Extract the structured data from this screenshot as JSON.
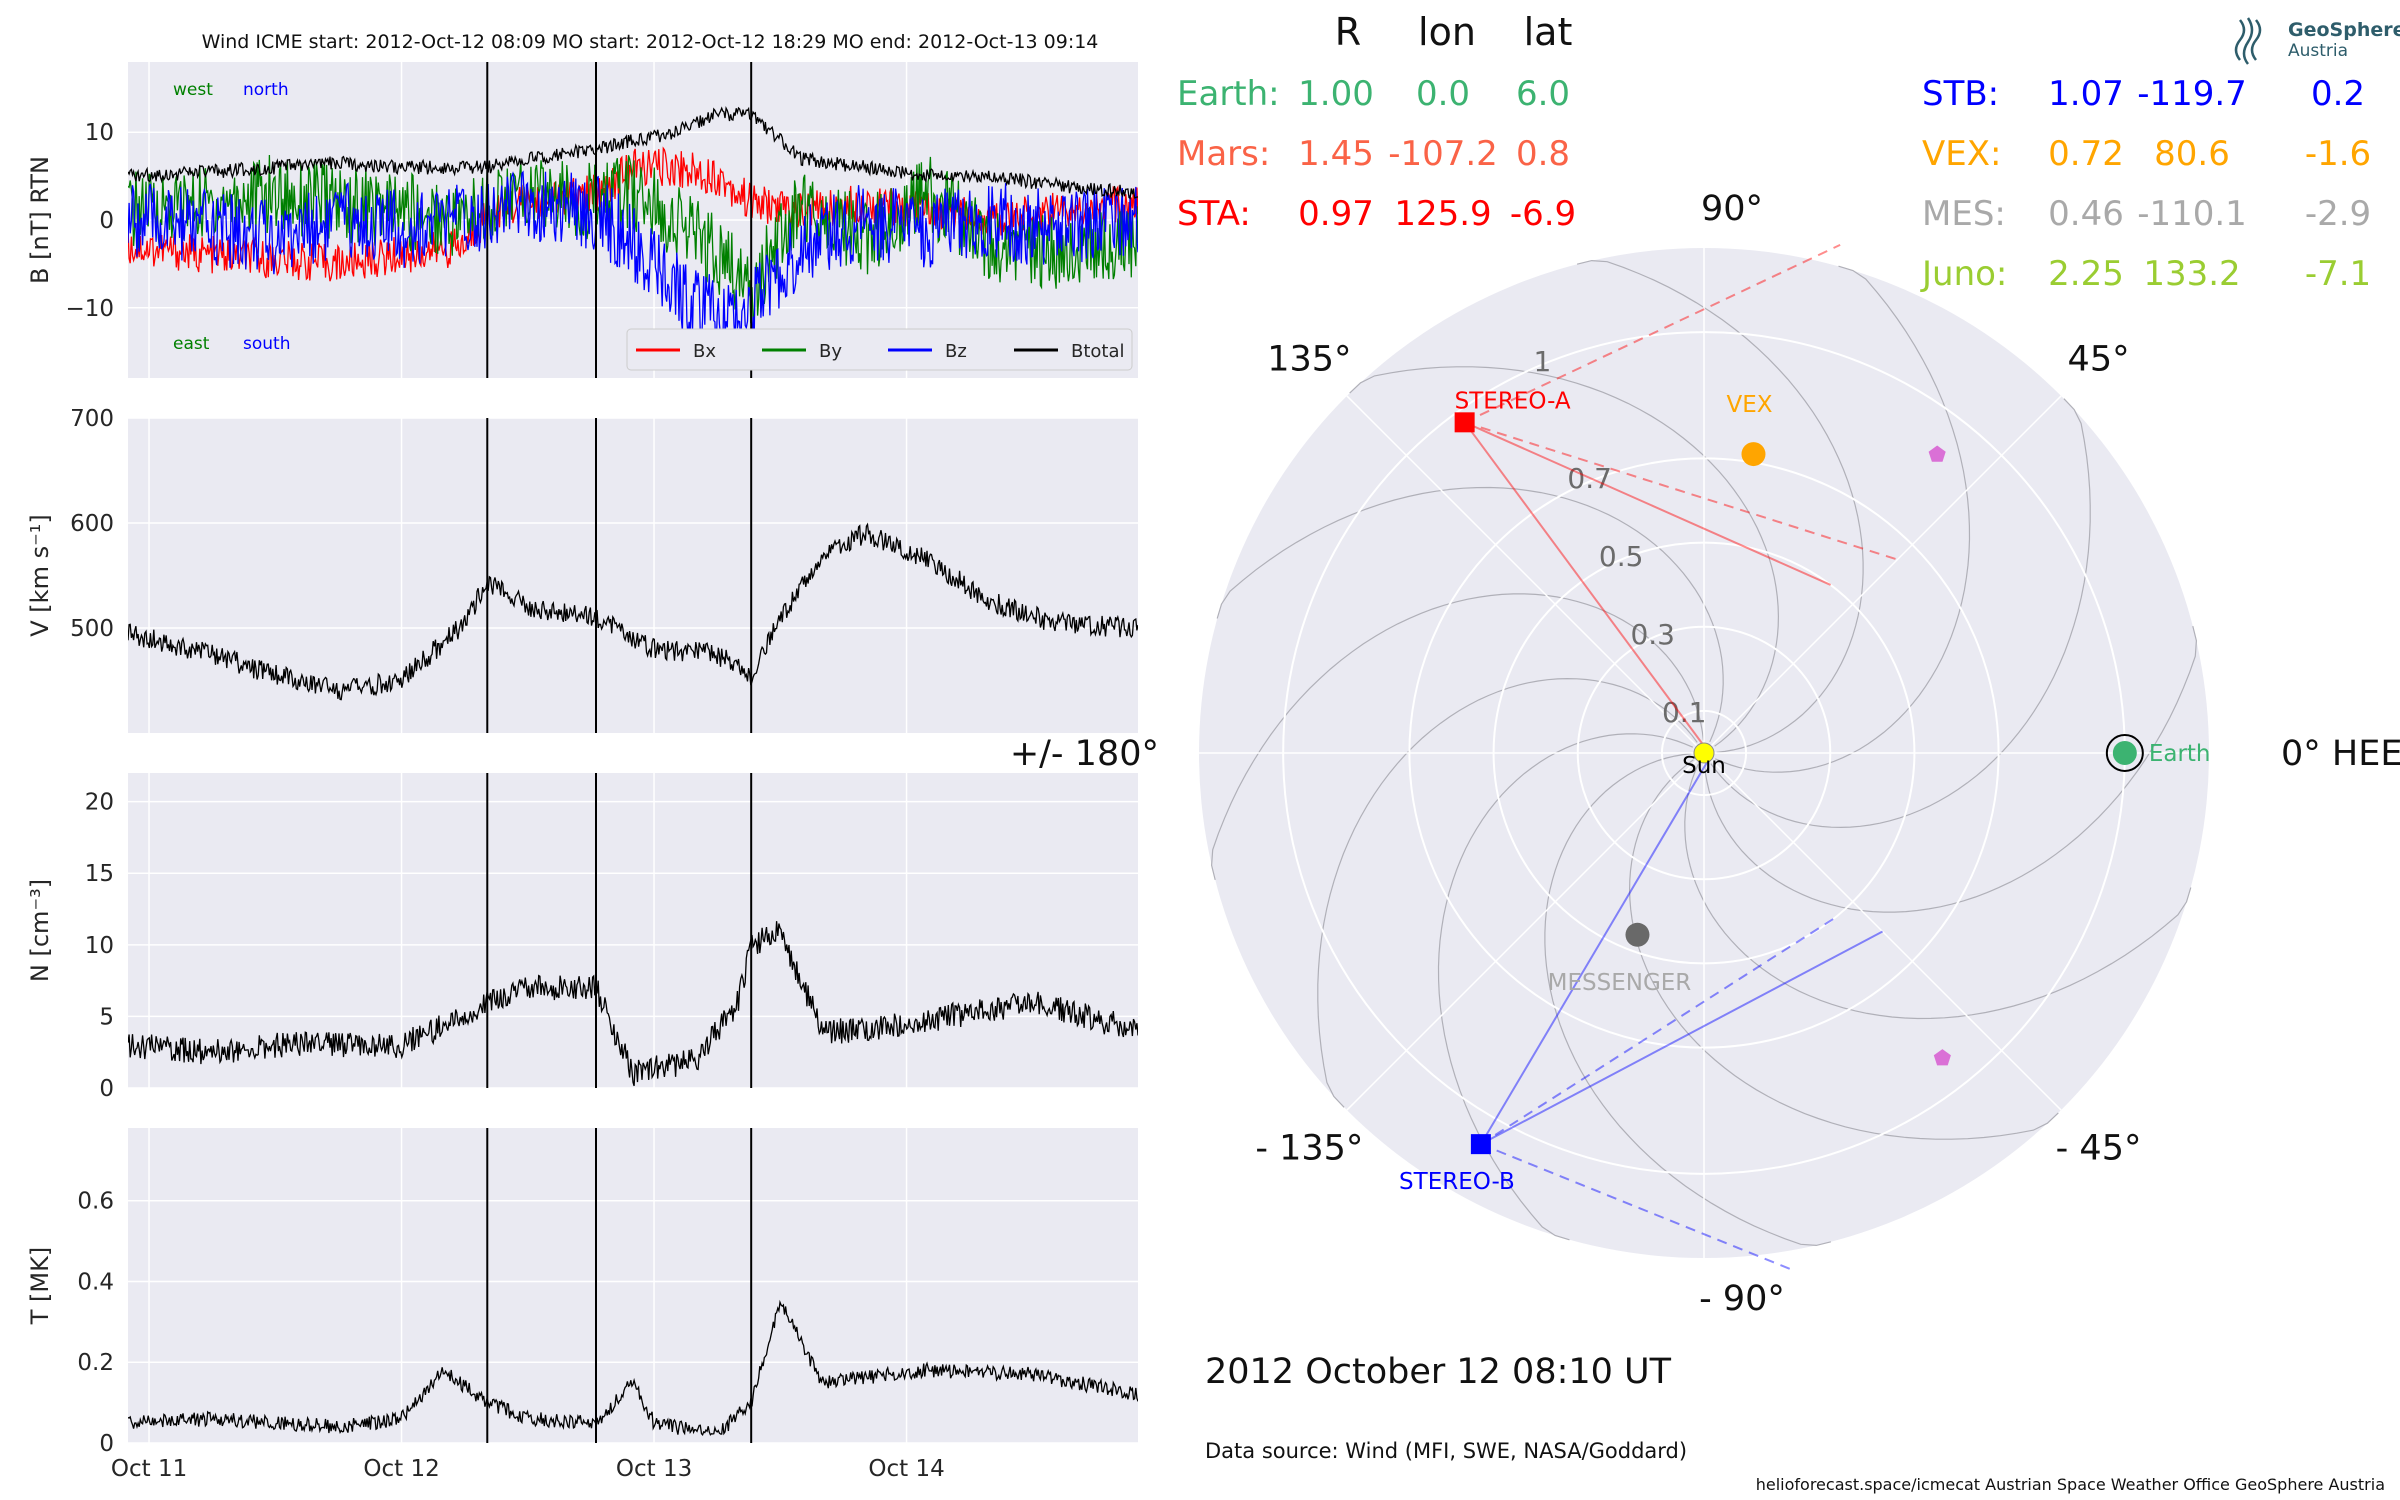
{
  "title": "Wind    ICME start: 2012-Oct-12 08:09    MO start: 2012-Oct-12 18:29    MO end: 2012-Oct-13 09:14",
  "time_axis": {
    "start": "2012-10-10T22:00",
    "end": "2012-10-14T22:00",
    "tick_labels": [
      "Oct 11",
      "Oct 12",
      "Oct 13",
      "Oct 14"
    ],
    "tick_dates": [
      "2012-10-11T00:00",
      "2012-10-12T00:00",
      "2012-10-13T00:00",
      "2012-10-14T00:00"
    ]
  },
  "event_lines": [
    {
      "label": "ICME start",
      "time": "2012-10-12T08:09"
    },
    {
      "label": "MO start",
      "time": "2012-10-12T18:29"
    },
    {
      "label": "MO end",
      "time": "2012-10-13T09:14"
    }
  ],
  "colors": {
    "panel_bg": "#eaeaf2",
    "grid": "#ffffff",
    "bx": "#ff0000",
    "by": "#008000",
    "bz": "#0000ff",
    "btotal": "#000000",
    "earth": "#3cb371",
    "mars": "#fa6347",
    "sta": "#ff0000",
    "stb": "#0000ff",
    "vex": "#ffa500",
    "mes": "#a9a9a9",
    "juno": "#9acd32",
    "sun": "#ffff00"
  },
  "annotations": {
    "west": "west",
    "north": "north",
    "east": "east",
    "south": "south"
  },
  "chart_data": [
    {
      "type": "line",
      "ylabel": "B [nT] RTN",
      "ylim": [
        -18,
        18
      ],
      "yticks": [
        -10,
        0,
        10
      ],
      "grid": true,
      "legend_position": "bottom-right",
      "series": [
        {
          "name": "Bx",
          "color": "#ff0000",
          "x": [
            "2012-10-10T22:00",
            "2012-10-11T06:00",
            "2012-10-11T12:00",
            "2012-10-11T18:00",
            "2012-10-12T00:00",
            "2012-10-12T06:00",
            "2012-10-12T08:09",
            "2012-10-12T12:00",
            "2012-10-12T18:29",
            "2012-10-12T22:00",
            "2012-10-13T02:00",
            "2012-10-13T06:00",
            "2012-10-13T09:14",
            "2012-10-13T14:00",
            "2012-10-13T20:00",
            "2012-10-14T02:00",
            "2012-10-14T08:00",
            "2012-10-14T14:00",
            "2012-10-14T22:00"
          ],
          "y": [
            -3,
            -4,
            -4.5,
            -5,
            -4,
            -3,
            1,
            2,
            3,
            6,
            6,
            5,
            2,
            1,
            2,
            1,
            0,
            1,
            2
          ]
        },
        {
          "name": "By",
          "color": "#008000",
          "x": [
            "2012-10-10T22:00",
            "2012-10-11T06:00",
            "2012-10-11T12:00",
            "2012-10-11T18:00",
            "2012-10-12T00:00",
            "2012-10-12T06:00",
            "2012-10-12T08:09",
            "2012-10-12T12:00",
            "2012-10-12T18:29",
            "2012-10-12T22:00",
            "2012-10-13T02:00",
            "2012-10-13T06:00",
            "2012-10-13T09:14",
            "2012-10-13T14:00",
            "2012-10-13T20:00",
            "2012-10-14T02:00",
            "2012-10-14T08:00",
            "2012-10-14T14:00",
            "2012-10-14T22:00"
          ],
          "y": [
            1,
            2,
            3,
            2,
            1,
            0,
            2,
            3,
            2,
            3,
            0,
            -4,
            -8,
            2,
            -2,
            3,
            -3,
            -4,
            -2
          ]
        },
        {
          "name": "Bz",
          "color": "#0000ff",
          "x": [
            "2012-10-10T22:00",
            "2012-10-11T06:00",
            "2012-10-11T12:00",
            "2012-10-11T18:00",
            "2012-10-12T00:00",
            "2012-10-12T06:00",
            "2012-10-12T08:09",
            "2012-10-12T12:00",
            "2012-10-12T18:29",
            "2012-10-12T22:00",
            "2012-10-13T02:00",
            "2012-10-13T06:00",
            "2012-10-13T09:14",
            "2012-10-13T14:00",
            "2012-10-13T20:00",
            "2012-10-14T02:00",
            "2012-10-14T08:00",
            "2012-10-14T14:00",
            "2012-10-14T22:00"
          ],
          "y": [
            0,
            -1,
            -2,
            0,
            -1,
            0,
            1,
            2,
            1,
            -3,
            -8,
            -11,
            -10,
            -3,
            0,
            -1,
            0,
            -1,
            0
          ]
        },
        {
          "name": "Btotal",
          "color": "#000000",
          "x": [
            "2012-10-10T22:00",
            "2012-10-11T06:00",
            "2012-10-11T12:00",
            "2012-10-11T18:00",
            "2012-10-12T00:00",
            "2012-10-12T06:00",
            "2012-10-12T08:09",
            "2012-10-12T12:00",
            "2012-10-12T18:29",
            "2012-10-12T22:00",
            "2012-10-13T02:00",
            "2012-10-13T06:00",
            "2012-10-13T09:14",
            "2012-10-13T14:00",
            "2012-10-13T20:00",
            "2012-10-14T02:00",
            "2012-10-14T08:00",
            "2012-10-14T14:00",
            "2012-10-14T22:00"
          ],
          "y": [
            5,
            5.5,
            6,
            6.5,
            6,
            6,
            6,
            7,
            8,
            9,
            10,
            12,
            12,
            7,
            6,
            5,
            5,
            4,
            3
          ]
        }
      ]
    },
    {
      "type": "line",
      "ylabel": "V [km s⁻¹]",
      "ylim": [
        400,
        700
      ],
      "yticks": [
        500,
        600,
        700
      ],
      "grid": true,
      "series": [
        {
          "name": "",
          "color": "#000000",
          "x": [
            "2012-10-10T22:00",
            "2012-10-11T06:00",
            "2012-10-11T12:00",
            "2012-10-11T18:00",
            "2012-10-12T00:00",
            "2012-10-12T06:00",
            "2012-10-12T08:09",
            "2012-10-12T12:00",
            "2012-10-12T18:29",
            "2012-10-13T00:00",
            "2012-10-13T06:00",
            "2012-10-13T09:14",
            "2012-10-13T12:00",
            "2012-10-13T16:00",
            "2012-10-13T20:00",
            "2012-10-14T02:00",
            "2012-10-14T08:00",
            "2012-10-14T14:00",
            "2012-10-14T22:00"
          ],
          "y": [
            495,
            475,
            455,
            440,
            450,
            505,
            545,
            520,
            510,
            480,
            475,
            455,
            510,
            570,
            590,
            565,
            525,
            505,
            500
          ]
        }
      ]
    },
    {
      "type": "line",
      "ylabel": "N [cm⁻³]",
      "ylim": [
        0,
        22
      ],
      "yticks": [
        0,
        5,
        10,
        15,
        20
      ],
      "grid": true,
      "series": [
        {
          "name": "",
          "color": "#000000",
          "x": [
            "2012-10-10T22:00",
            "2012-10-11T06:00",
            "2012-10-11T12:00",
            "2012-10-11T18:00",
            "2012-10-12T00:00",
            "2012-10-12T06:00",
            "2012-10-12T08:09",
            "2012-10-12T12:00",
            "2012-10-12T18:29",
            "2012-10-12T22:00",
            "2012-10-13T04:00",
            "2012-10-13T08:00",
            "2012-10-13T09:14",
            "2012-10-13T12:00",
            "2012-10-13T16:00",
            "2012-10-13T20:00",
            "2012-10-14T04:00",
            "2012-10-14T12:00",
            "2012-10-14T22:00"
          ],
          "y": [
            3,
            2.5,
            3,
            3,
            3,
            5,
            6,
            7,
            7,
            1,
            2,
            6,
            10,
            11,
            4,
            4,
            5,
            6,
            4
          ]
        }
      ]
    },
    {
      "type": "line",
      "ylabel": "T [MK]",
      "ylim": [
        0,
        0.78
      ],
      "yticks": [
        0.0,
        0.2,
        0.4,
        0.6
      ],
      "grid": true,
      "series": [
        {
          "name": "",
          "color": "#000000",
          "x": [
            "2012-10-10T22:00",
            "2012-10-11T06:00",
            "2012-10-11T12:00",
            "2012-10-11T18:00",
            "2012-10-12T00:00",
            "2012-10-12T04:00",
            "2012-10-12T08:09",
            "2012-10-12T12:00",
            "2012-10-12T18:29",
            "2012-10-12T22:00",
            "2012-10-13T00:00",
            "2012-10-13T06:00",
            "2012-10-13T09:14",
            "2012-10-13T12:00",
            "2012-10-13T16:00",
            "2012-10-14T02:00",
            "2012-10-14T12:00",
            "2012-10-14T22:00"
          ],
          "y": [
            0.05,
            0.06,
            0.05,
            0.04,
            0.06,
            0.18,
            0.1,
            0.06,
            0.05,
            0.15,
            0.05,
            0.02,
            0.1,
            0.35,
            0.15,
            0.18,
            0.17,
            0.12
          ]
        }
      ]
    },
    {
      "type": "scatter",
      "subtype": "polar",
      "angle_labels": [
        "0° HEEQ",
        "45°",
        "90°",
        "135°",
        "+/- 180°",
        "- 135°",
        "- 90°",
        "- 45°"
      ],
      "angle_values": [
        0,
        45,
        90,
        135,
        180,
        -135,
        -90,
        -45
      ],
      "r_ticks": [
        0.1,
        0.3,
        0.5,
        0.7,
        1.0
      ],
      "rlim": [
        0,
        1.2
      ],
      "points": [
        {
          "name": "Sun",
          "r": 0.0,
          "lon": 0,
          "color": "#ffff00"
        },
        {
          "name": "Earth",
          "r": 1.0,
          "lon": 0.0,
          "color": "#3cb371"
        },
        {
          "name": "STEREO-A",
          "r": 0.97,
          "lon": 125.9,
          "color": "#ff0000"
        },
        {
          "name": "STEREO-B",
          "r": 1.07,
          "lon": -119.7,
          "color": "#0000ff"
        },
        {
          "name": "VEX",
          "r": 0.72,
          "lon": 80.6,
          "color": "#ffa500"
        },
        {
          "name": "MESSENGER",
          "r": 0.46,
          "lon": -110.1,
          "color": "#696969"
        },
        {
          "name": "",
          "r": 0.9,
          "lon": 52,
          "color": "#da70d6"
        },
        {
          "name": "",
          "r": 0.92,
          "lon": -52,
          "color": "#da70d6"
        }
      ]
    }
  ],
  "positions_table": {
    "headers": [
      "R",
      "lon",
      "lat"
    ],
    "rows_left": [
      {
        "label": "Earth:",
        "R": "1.00",
        "lon": "0.0",
        "lat": "6.0",
        "color": "#3cb371"
      },
      {
        "label": "Mars:",
        "R": "1.45",
        "lon": "-107.2",
        "lat": "0.8",
        "color": "#fa6347"
      },
      {
        "label": "STA:",
        "R": "0.97",
        "lon": "125.9",
        "lat": "-6.9",
        "color": "#ff0000"
      }
    ],
    "rows_right": [
      {
        "label": "STB:",
        "R": "1.07",
        "lon": "-119.7",
        "lat": "0.2",
        "color": "#0000ff"
      },
      {
        "label": "VEX:",
        "R": "0.72",
        "lon": "80.6",
        "lat": "-1.6",
        "color": "#ffa500"
      },
      {
        "label": "MES:",
        "R": "0.46",
        "lon": "-110.1",
        "lat": "-2.9",
        "color": "#a9a9a9"
      },
      {
        "label": "Juno:",
        "R": "2.25",
        "lon": "133.2",
        "lat": "-7.1",
        "color": "#9acd32"
      }
    ]
  },
  "date_text": "2012 October 12  08:10 UT",
  "data_source": "Data source: Wind (MFI, SWE, NASA/Goddard)",
  "footer": "helioforecast.space/icmecat   Austrian Space Weather Office   GeoSphere Austria",
  "logo": {
    "line1": "GeoSphere",
    "line2": "Austria"
  }
}
